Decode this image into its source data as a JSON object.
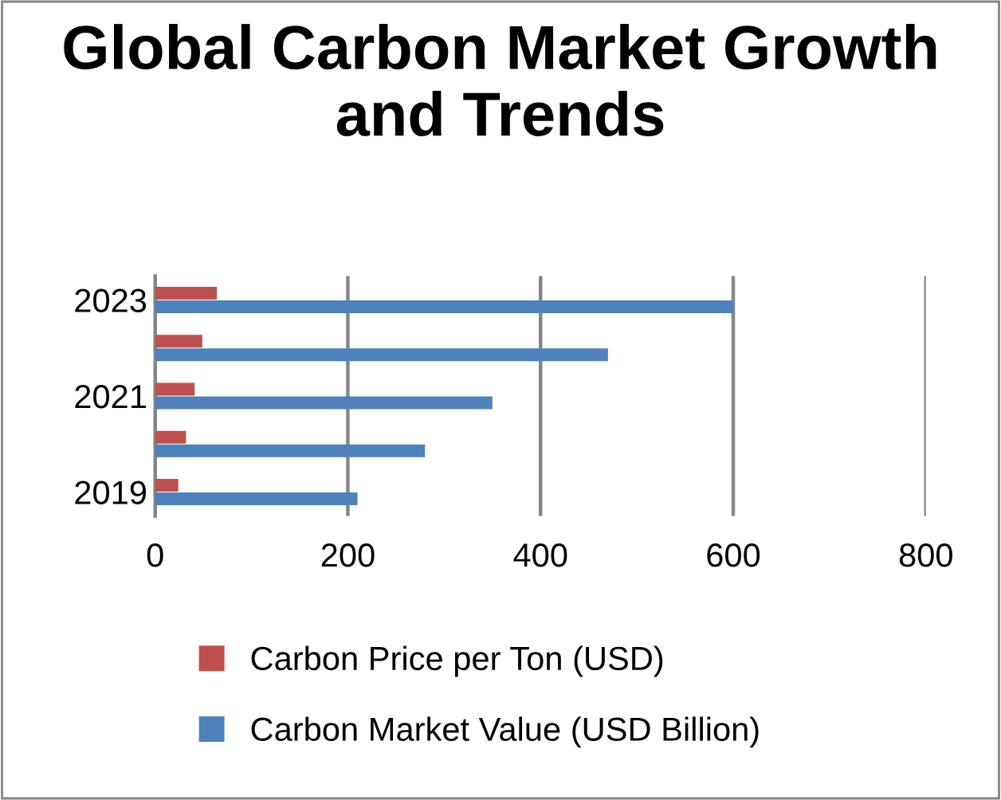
{
  "chart_data": {
    "type": "bar",
    "orientation": "horizontal",
    "title": "Global Carbon Market Growth and Trends",
    "categories": [
      "2023",
      null,
      "2021",
      null,
      "2019"
    ],
    "series": [
      {
        "name": "Carbon Price per Ton (USD)",
        "color": "#c0504d",
        "values": [
          64,
          49,
          41,
          32,
          24
        ]
      },
      {
        "name": "Carbon Market Value (USD Billion)",
        "color": "#4f81bd",
        "values": [
          600,
          470,
          350,
          280,
          210
        ]
      }
    ],
    "xlim": [
      0,
      800
    ],
    "xticks": [
      0,
      200,
      400,
      600,
      800
    ],
    "grid": "x",
    "legend": "bottom"
  }
}
